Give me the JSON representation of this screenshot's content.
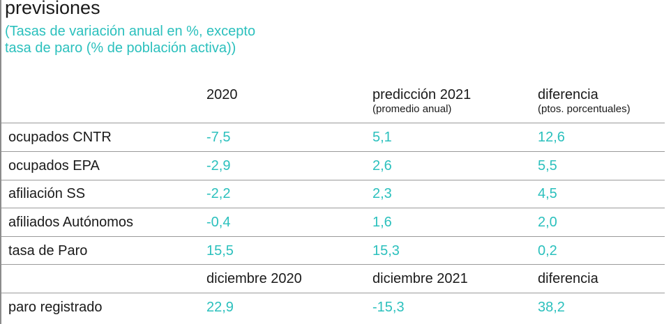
{
  "title": "previsiones",
  "subtitle_lines": [
    "(Tasas de variación anual en %, excepto",
    "tasa de paro (% de población activa))"
  ],
  "header": {
    "col1": "2020",
    "col2": "predicción 2021",
    "col2_sub": "(promedio anual)",
    "col3": "diferencia",
    "col3_sub": "(ptos. porcentuales)"
  },
  "rows": [
    {
      "label": "ocupados CNTR",
      "v2020": "-7,5",
      "v2021": "5,1",
      "diff": "12,6"
    },
    {
      "label": "ocupados EPA",
      "v2020": "-2,9",
      "v2021": "2,6",
      "diff": "5,5"
    },
    {
      "label": "afiliación SS",
      "v2020": "-2,2",
      "v2021": "2,3",
      "diff": "4,5"
    },
    {
      "label": "afiliados Autónomos",
      "v2020": "-0,4",
      "v2021": "1,6",
      "diff": "2,0"
    },
    {
      "label": "tasa de Paro",
      "v2020": "15,5",
      "v2021": "15,3",
      "diff": "0,2"
    }
  ],
  "header2": {
    "col1": "diciembre 2020",
    "col2": "diciembre 2021",
    "col3": "diferencia"
  },
  "last_row": {
    "label": "paro registrado",
    "v2020": "22,9",
    "v2021": "-15,3",
    "diff": "38,2"
  },
  "colors": {
    "accent": "#2bc0bd",
    "text": "#1a1a1a",
    "rule": "#9a9a9a"
  }
}
